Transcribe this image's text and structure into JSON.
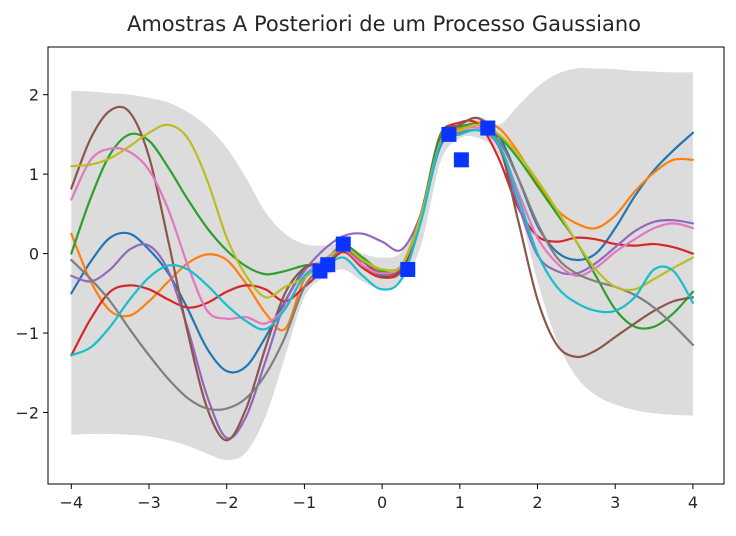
{
  "chart_data": {
    "type": "line",
    "title": "Amostras A Posteriori de um Processo Gaussiano",
    "xlabel": "",
    "ylabel": "",
    "xlim": [
      -4.3,
      4.4
    ],
    "ylim": [
      -2.9,
      2.6
    ],
    "x_ticks": [
      -4,
      -3,
      -2,
      -1,
      0,
      1,
      2,
      3,
      4
    ],
    "x_tick_labels": [
      "−4",
      "−3",
      "−2",
      "−1",
      "0",
      "1",
      "2",
      "3",
      "4"
    ],
    "y_ticks": [
      -2,
      -1,
      0,
      1,
      2
    ],
    "y_tick_labels": [
      "−2",
      "−1",
      "0",
      "1",
      "2"
    ],
    "grid": false,
    "legend": "none",
    "x": [
      -4.0,
      -3.75,
      -3.5,
      -3.25,
      -3.0,
      -2.75,
      -2.5,
      -2.25,
      -2.0,
      -1.75,
      -1.5,
      -1.25,
      -1.0,
      -0.75,
      -0.5,
      -0.25,
      0.0,
      0.25,
      0.5,
      0.75,
      1.0,
      1.25,
      1.5,
      1.75,
      2.0,
      2.25,
      2.5,
      2.75,
      3.0,
      3.25,
      3.5,
      3.75,
      4.0
    ],
    "confidence_band": {
      "color": "#dcdcdc",
      "upper": [
        2.05,
        2.04,
        2.02,
        2.0,
        1.96,
        1.9,
        1.78,
        1.6,
        1.33,
        0.95,
        0.52,
        0.25,
        0.12,
        0.1,
        0.12,
        0.0,
        -0.05,
        0.02,
        0.5,
        1.35,
        1.62,
        1.72,
        1.62,
        1.86,
        2.1,
        2.26,
        2.33,
        2.33,
        2.32,
        2.3,
        2.29,
        2.28,
        2.28
      ],
      "lower": [
        -2.28,
        -2.27,
        -2.27,
        -2.28,
        -2.3,
        -2.35,
        -2.42,
        -2.52,
        -2.6,
        -2.5,
        -2.05,
        -1.3,
        -0.55,
        -0.3,
        -0.2,
        -0.35,
        -0.45,
        -0.35,
        0.1,
        1.15,
        1.45,
        1.45,
        1.25,
        0.6,
        -0.35,
        -1.1,
        -1.55,
        -1.78,
        -1.9,
        -1.97,
        -2.01,
        -2.03,
        -2.04
      ]
    },
    "series": [
      {
        "color": "#1f77b4",
        "values": [
          -0.5,
          -0.1,
          0.2,
          0.25,
          0.05,
          -0.25,
          -0.7,
          -1.2,
          -1.48,
          -1.42,
          -1.05,
          -0.6,
          -0.2,
          -0.1,
          0.08,
          -0.15,
          -0.28,
          -0.22,
          0.45,
          1.35,
          1.55,
          1.62,
          1.48,
          0.95,
          0.35,
          0.02,
          -0.08,
          0.0,
          0.32,
          0.72,
          1.05,
          1.3,
          1.52
        ]
      },
      {
        "color": "#ff7f0e",
        "values": [
          0.25,
          -0.35,
          -0.72,
          -0.78,
          -0.6,
          -0.35,
          -0.12,
          -0.01,
          -0.08,
          -0.38,
          -0.75,
          -0.95,
          -0.32,
          -0.15,
          0.1,
          -0.15,
          -0.3,
          -0.2,
          0.45,
          1.42,
          1.58,
          1.65,
          1.58,
          1.28,
          0.88,
          0.55,
          0.38,
          0.32,
          0.48,
          0.78,
          1.02,
          1.18,
          1.18
        ]
      },
      {
        "color": "#2ca02c",
        "values": [
          0.0,
          0.7,
          1.25,
          1.5,
          1.42,
          1.08,
          0.68,
          0.32,
          0.04,
          -0.16,
          -0.26,
          -0.22,
          -0.15,
          -0.12,
          0.1,
          -0.05,
          -0.22,
          -0.15,
          0.5,
          1.5,
          1.6,
          1.62,
          1.48,
          1.2,
          0.85,
          0.5,
          0.15,
          -0.28,
          -0.7,
          -0.92,
          -0.92,
          -0.75,
          -0.48
        ]
      },
      {
        "color": "#d62728",
        "values": [
          -1.28,
          -0.82,
          -0.48,
          -0.4,
          -0.45,
          -0.58,
          -0.68,
          -0.62,
          -0.48,
          -0.4,
          -0.45,
          -0.6,
          -0.42,
          -0.2,
          0.02,
          -0.18,
          -0.3,
          -0.2,
          0.42,
          1.45,
          1.65,
          1.62,
          1.2,
          0.58,
          0.22,
          0.15,
          0.2,
          0.18,
          0.12,
          0.1,
          0.12,
          0.08,
          0.0
        ]
      },
      {
        "color": "#9467bd",
        "values": [
          -0.28,
          -0.35,
          -0.2,
          0.05,
          0.1,
          -0.22,
          -0.95,
          -1.8,
          -2.32,
          -2.05,
          -1.35,
          -0.62,
          -0.22,
          0.05,
          0.22,
          0.25,
          0.15,
          0.05,
          0.5,
          1.38,
          1.5,
          1.55,
          1.35,
          0.62,
          -0.02,
          -0.22,
          -0.25,
          -0.12,
          0.08,
          0.28,
          0.4,
          0.42,
          0.38
        ]
      },
      {
        "color": "#8c564b",
        "values": [
          0.82,
          1.45,
          1.8,
          1.78,
          1.22,
          0.15,
          -1.0,
          -1.95,
          -2.35,
          -1.95,
          -1.18,
          -0.5,
          -0.18,
          -0.1,
          0.1,
          -0.1,
          -0.25,
          -0.18,
          0.5,
          1.45,
          1.62,
          1.7,
          1.4,
          0.42,
          -0.58,
          -1.15,
          -1.3,
          -1.22,
          -1.05,
          -0.88,
          -0.72,
          -0.6,
          -0.55
        ]
      },
      {
        "color": "#e377c2",
        "values": [
          0.68,
          1.18,
          1.32,
          1.28,
          1.05,
          0.55,
          -0.15,
          -0.72,
          -0.82,
          -0.8,
          -0.88,
          -0.68,
          -0.28,
          -0.08,
          0.05,
          -0.15,
          -0.25,
          -0.15,
          0.45,
          1.4,
          1.55,
          1.58,
          1.38,
          0.78,
          0.2,
          -0.12,
          -0.28,
          -0.18,
          0.02,
          0.18,
          0.32,
          0.38,
          0.32
        ]
      },
      {
        "color": "#7f7f7f",
        "values": [
          -0.08,
          -0.32,
          -0.6,
          -0.95,
          -1.28,
          -1.58,
          -1.82,
          -1.95,
          -1.95,
          -1.82,
          -1.52,
          -1.05,
          -0.42,
          -0.15,
          0.05,
          -0.1,
          -0.2,
          -0.15,
          0.42,
          1.38,
          1.52,
          1.55,
          1.42,
          0.95,
          0.38,
          -0.05,
          -0.25,
          -0.35,
          -0.42,
          -0.52,
          -0.68,
          -0.9,
          -1.15
        ]
      },
      {
        "color": "#bcbd22",
        "values": [
          1.1,
          1.12,
          1.2,
          1.35,
          1.52,
          1.62,
          1.45,
          0.92,
          0.2,
          -0.28,
          -0.55,
          -0.42,
          -0.3,
          -0.12,
          0.08,
          -0.08,
          -0.2,
          -0.15,
          0.48,
          1.4,
          1.55,
          1.62,
          1.5,
          1.25,
          0.92,
          0.55,
          0.15,
          -0.2,
          -0.42,
          -0.45,
          -0.32,
          -0.18,
          -0.05
        ]
      },
      {
        "color": "#17becf",
        "values": [
          -1.28,
          -1.18,
          -0.92,
          -0.58,
          -0.3,
          -0.15,
          -0.2,
          -0.4,
          -0.65,
          -0.85,
          -0.95,
          -0.7,
          -0.28,
          -0.18,
          -0.05,
          -0.28,
          -0.45,
          -0.32,
          0.4,
          1.38,
          1.5,
          1.55,
          1.38,
          0.72,
          0.0,
          -0.42,
          -0.62,
          -0.72,
          -0.72,
          -0.55,
          -0.2,
          -0.22,
          -0.62
        ]
      }
    ],
    "observations": {
      "color": "#0a34ff",
      "x": [
        -0.8,
        -0.7,
        -0.5,
        0.33,
        0.86,
        1.02,
        1.36
      ],
      "y": [
        -0.22,
        -0.14,
        0.12,
        -0.2,
        1.5,
        1.18,
        1.58
      ]
    }
  }
}
